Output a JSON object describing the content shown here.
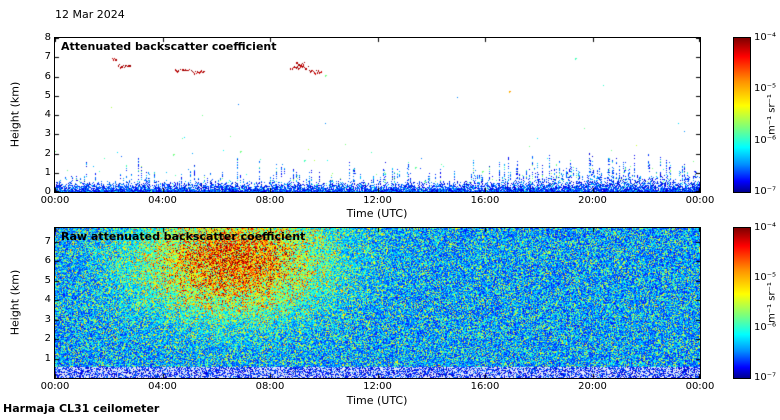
{
  "page": {
    "date_label": "12 Mar 2024",
    "footer_label": "Harmaja CL31 ceilometer",
    "background_color": "#ffffff"
  },
  "chart_data": [
    {
      "type": "heatmap",
      "title": "Attenuated backscatter coefficient",
      "xlabel": "Time (UTC)",
      "ylabel": "Height (km)",
      "x_tick_labels": [
        "00:00",
        "04:00",
        "08:00",
        "12:00",
        "16:00",
        "20:00",
        "00:00"
      ],
      "x_range_hours": [
        0,
        24
      ],
      "y_tick_labels": [
        "0",
        "1",
        "2",
        "3",
        "4",
        "5",
        "6",
        "7",
        "8"
      ],
      "y_tick_values": [
        0,
        1,
        2,
        3,
        4,
        5,
        6,
        7,
        8
      ],
      "y_range_km": [
        0,
        8
      ],
      "colormap": "jet",
      "colorbar": {
        "unit": "m⁻¹ sr⁻¹",
        "scale": "log10",
        "min": 1e-07,
        "max": 0.0001,
        "tick_labels": [
          "10⁻⁴",
          "10⁻⁵",
          "10⁻⁶",
          "10⁻⁷"
        ]
      },
      "features": {
        "boundary_layer": {
          "description": "dense blue aerosol backscatter below ~0.6 km all day, spikier and deeper after 16:00",
          "typical_top_km": 0.6
        },
        "cloud_streaks": [
          {
            "t0": 2.15,
            "t1": 2.3,
            "km": 6.85
          },
          {
            "t0": 2.35,
            "t1": 2.8,
            "km": 6.5
          },
          {
            "t0": 4.5,
            "t1": 5.05,
            "km": 6.3
          },
          {
            "t0": 5.05,
            "t1": 5.6,
            "km": 6.18
          },
          {
            "t0": 8.75,
            "t1": 9.45,
            "km": 6.42
          },
          {
            "t0": 9.0,
            "t1": 9.3,
            "km": 6.6
          },
          {
            "t0": 9.45,
            "t1": 9.95,
            "km": 6.2
          }
        ],
        "specks": [
          {
            "t": 10.05,
            "km": 6.0,
            "v": 0.5
          },
          {
            "t": 16.9,
            "km": 5.15,
            "v": 0.72
          },
          {
            "t": 19.35,
            "km": 6.9,
            "v": 0.45
          },
          {
            "t": 4.4,
            "km": 1.9,
            "v": 0.5
          },
          {
            "t": 6.9,
            "km": 2.05,
            "v": 0.5
          },
          {
            "t": 9.3,
            "km": 1.6,
            "v": 0.45
          },
          {
            "t": 13.4,
            "km": 1.2,
            "v": 0.48
          },
          {
            "t": 15.9,
            "km": 1.0,
            "v": 0.5
          }
        ]
      }
    },
    {
      "type": "heatmap",
      "title": "Raw attenuated backscatter coefficient",
      "xlabel": "Time (UTC)",
      "ylabel": "Height (km)",
      "x_tick_labels": [
        "00:00",
        "04:00",
        "08:00",
        "12:00",
        "16:00",
        "20:00",
        "00:00"
      ],
      "x_range_hours": [
        0,
        24
      ],
      "y_tick_labels": [
        "1",
        "2",
        "3",
        "4",
        "5",
        "6",
        "7"
      ],
      "y_tick_values": [
        1,
        2,
        3,
        4,
        5,
        6,
        7
      ],
      "y_range_km": [
        0,
        7.7
      ],
      "colormap": "jet",
      "colorbar": {
        "unit": "m⁻¹ sr⁻¹",
        "scale": "log10",
        "min": 1e-07,
        "max": 0.0001,
        "tick_labels": [
          "10⁻⁴",
          "10⁻⁵",
          "10⁻⁶",
          "10⁻⁷"
        ]
      },
      "features": {
        "noise_field": "dense random multicolour speckle (blue/green dominant) over the whole time-height range",
        "enhanced_region": {
          "t_center": 6.6,
          "t_sigma": 2.3,
          "km_center": 6.0,
          "km_sigma": 1.9,
          "strength": 0.85,
          "description": "orange-red enhanced backscatter plume ~03:00-10:00 between ~3.5 and 7.5 km"
        },
        "surface_band": {
          "top_km": 0.55,
          "description": "pale whitish low-signal band near the surface"
        }
      }
    }
  ]
}
